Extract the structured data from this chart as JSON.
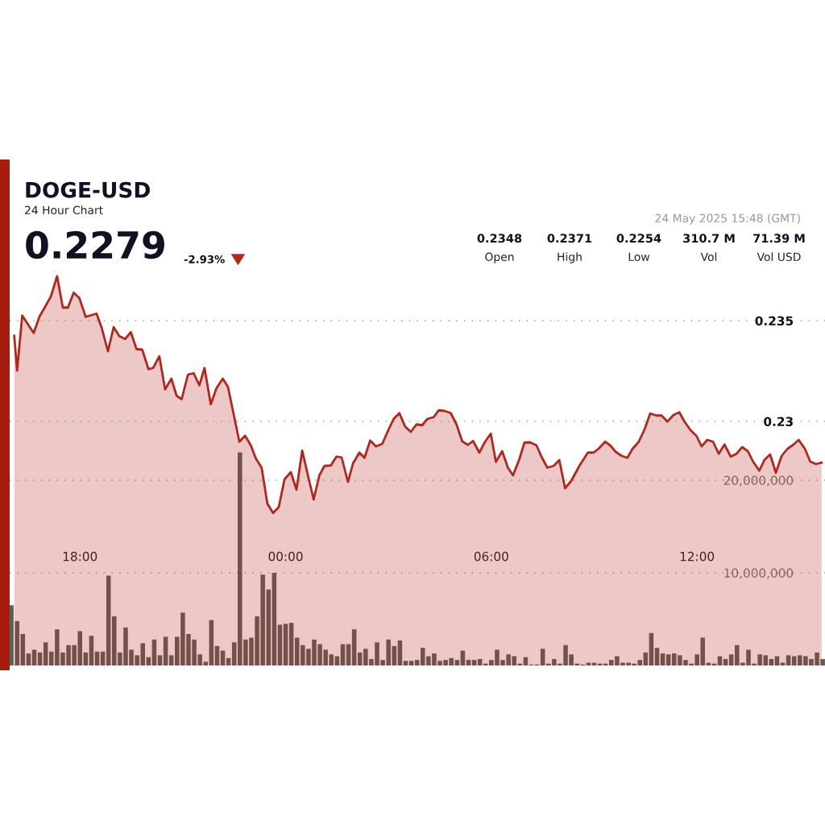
{
  "chart_data": {
    "type": "area",
    "title": "DOGE-USD",
    "subtitle": "24 Hour Chart",
    "annotations": [
      "0.2279",
      "-2.93%",
      "0.2348",
      "Open",
      "0.2371",
      "High",
      "0.2254",
      "Low",
      "310.7 M",
      "Vol",
      "71.39 M",
      "Vol USD",
      "24 May 2025 15:48 (GMT)"
    ],
    "series": [
      {
        "color": "#b3261e",
        "x": [
          "2025-05-23T16:05",
          "2025-05-23T16:10",
          "2025-05-23T16:19",
          "2025-05-23T16:39",
          "2025-05-23T16:49",
          "2025-05-23T17:09",
          "2025-05-23T17:20",
          "2025-05-23T17:30",
          "2025-05-23T17:39",
          "2025-05-23T17:49",
          "2025-05-23T17:59",
          "2025-05-23T18:10",
          "2025-05-23T18:29",
          "2025-05-23T18:38",
          "2025-05-23T18:49",
          "2025-05-23T18:59",
          "2025-05-23T19:09",
          "2025-05-23T19:19",
          "2025-05-23T19:29",
          "2025-05-23T19:39",
          "2025-05-23T19:49",
          "2025-05-23T20:00",
          "2025-05-23T20:08",
          "2025-05-23T20:19",
          "2025-05-23T20:29",
          "2025-05-23T20:40",
          "2025-05-23T20:49",
          "2025-05-23T20:58",
          "2025-05-23T21:09",
          "2025-05-23T21:19",
          "2025-05-23T21:29",
          "2025-05-23T21:38",
          "2025-05-23T21:49",
          "2025-05-23T21:59",
          "2025-05-23T22:10",
          "2025-05-23T22:19",
          "2025-05-23T22:39",
          "2025-05-23T22:49",
          "2025-05-23T22:59",
          "2025-05-23T23:08",
          "2025-05-23T23:18",
          "2025-05-23T23:28",
          "2025-05-23T23:38",
          "2025-05-23T23:48",
          "2025-05-23T23:58",
          "2025-05-24T00:09",
          "2025-05-24T00:19",
          "2025-05-24T00:29",
          "2025-05-24T00:39",
          "2025-05-24T00:49",
          "2025-05-24T00:59",
          "2025-05-24T01:08",
          "2025-05-24T01:19",
          "2025-05-24T01:29",
          "2025-05-24T01:38",
          "2025-05-24T01:49",
          "2025-05-24T01:58",
          "2025-05-24T02:09",
          "2025-05-24T02:18",
          "2025-05-24T02:28",
          "2025-05-24T02:38",
          "2025-05-24T02:49",
          "2025-05-24T02:59",
          "2025-05-24T03:09",
          "2025-05-24T03:19",
          "2025-05-24T03:29",
          "2025-05-24T03:39",
          "2025-05-24T03:49",
          "2025-05-24T03:59",
          "2025-05-24T04:08",
          "2025-05-24T04:19",
          "2025-05-24T04:28",
          "2025-05-24T04:38",
          "2025-05-24T04:49",
          "2025-05-24T04:59",
          "2025-05-24T05:09",
          "2025-05-24T05:19",
          "2025-05-24T05:28",
          "2025-05-24T05:39",
          "2025-05-24T05:49",
          "2025-05-24T05:59",
          "2025-05-24T06:08",
          "2025-05-24T06:19",
          "2025-05-24T06:29",
          "2025-05-24T06:38",
          "2025-05-24T06:49",
          "2025-05-24T06:58",
          "2025-05-24T07:08",
          "2025-05-24T07:19",
          "2025-05-24T07:28",
          "2025-05-24T07:38",
          "2025-05-24T07:49",
          "2025-05-24T07:59",
          "2025-05-24T08:09",
          "2025-05-24T08:20",
          "2025-05-24T08:34",
          "2025-05-24T08:49",
          "2025-05-24T08:59",
          "2025-05-24T09:08",
          "2025-05-24T09:19",
          "2025-05-24T09:28",
          "2025-05-24T09:38",
          "2025-05-24T09:48",
          "2025-05-24T09:58",
          "2025-05-24T10:07",
          "2025-05-24T10:18",
          "2025-05-24T10:28",
          "2025-05-24T10:38",
          "2025-05-24T10:49",
          "2025-05-24T10:58",
          "2025-05-24T11:08",
          "2025-05-24T11:19",
          "2025-05-24T11:29",
          "2025-05-24T11:38",
          "2025-05-24T11:49",
          "2025-05-24T11:59",
          "2025-05-24T12:08",
          "2025-05-24T12:18",
          "2025-05-24T12:28",
          "2025-05-24T12:38",
          "2025-05-24T12:48",
          "2025-05-24T12:59",
          "2025-05-24T13:09",
          "2025-05-24T13:19",
          "2025-05-24T13:29",
          "2025-05-24T13:38",
          "2025-05-24T13:49",
          "2025-05-24T13:58",
          "2025-05-24T14:08",
          "2025-05-24T14:18",
          "2025-05-24T14:28",
          "2025-05-24T14:38",
          "2025-05-24T14:48",
          "2025-05-24T14:58",
          "2025-05-24T15:09",
          "2025-05-24T15:18",
          "2025-05-24T15:28",
          "2025-05-24T15:38"
        ],
        "values": [
          0.23425,
          0.23252,
          0.23525,
          0.23439,
          0.23519,
          0.23619,
          0.23721,
          0.23565,
          0.23565,
          0.23639,
          0.23612,
          0.23519,
          0.23535,
          0.23465,
          0.23348,
          0.23468,
          0.23423,
          0.23409,
          0.23443,
          0.23359,
          0.23356,
          0.23259,
          0.23265,
          0.23323,
          0.23159,
          0.23212,
          0.23128,
          0.2311,
          0.23232,
          0.23239,
          0.23179,
          0.23265,
          0.23085,
          0.23165,
          0.23212,
          0.23172,
          0.22899,
          0.22929,
          0.22881,
          0.22815,
          0.2277,
          0.22592,
          0.22545,
          0.22575,
          0.22712,
          0.22748,
          0.22661,
          0.22855,
          0.22732,
          0.22612,
          0.22732,
          0.22779,
          0.22781,
          0.22825,
          0.22821,
          0.22699,
          0.22792,
          0.22845,
          0.22819,
          0.22905,
          0.22876,
          0.22888,
          0.22952,
          0.23012,
          0.23041,
          0.22975,
          0.22948,
          0.22985,
          0.22981,
          0.23012,
          0.23021,
          0.23055,
          0.23052,
          0.23041,
          0.22985,
          0.22901,
          0.22883,
          0.22903,
          0.22845,
          0.22899,
          0.22939,
          0.22799,
          0.22852,
          0.2277,
          0.22732,
          0.22812,
          0.22895,
          0.22896,
          0.22881,
          0.22823,
          0.2277,
          0.22779,
          0.22808,
          0.22668,
          0.22705,
          0.22779,
          0.22845,
          0.22845,
          0.22865,
          0.22899,
          0.22881,
          0.22848,
          0.22829,
          0.22819,
          0.22863,
          0.22899,
          0.22959,
          0.23039,
          0.23029,
          0.23029,
          0.22999,
          0.23032,
          0.23045,
          0.22999,
          0.22955,
          0.22928,
          0.22876,
          0.22908,
          0.22899,
          0.22839,
          0.22885,
          0.22825,
          0.22839,
          0.22872,
          0.22852,
          0.22801,
          0.22755,
          0.22809,
          0.22836,
          0.22745,
          0.22828,
          0.22863,
          0.22883,
          0.22908,
          0.22863,
          0.22801,
          0.22788,
          0.22795
        ]
      },
      {
        "type": "bar",
        "axis": "y2",
        "color": "#5e5e58",
        "x": [
          "2025-05-23T16:00",
          "2025-05-23T16:10",
          "2025-05-23T16:20",
          "2025-05-23T16:30",
          "2025-05-23T16:40",
          "2025-05-23T16:50",
          "2025-05-23T17:00",
          "2025-05-23T17:10",
          "2025-05-23T17:20",
          "2025-05-23T17:30",
          "2025-05-23T17:40",
          "2025-05-23T17:50",
          "2025-05-23T18:00",
          "2025-05-23T18:10",
          "2025-05-23T18:20",
          "2025-05-23T18:30",
          "2025-05-23T18:40",
          "2025-05-23T18:50",
          "2025-05-23T19:00",
          "2025-05-23T19:10",
          "2025-05-23T19:20",
          "2025-05-23T19:30",
          "2025-05-23T19:40",
          "2025-05-23T19:50",
          "2025-05-23T20:00",
          "2025-05-23T20:10",
          "2025-05-23T20:20",
          "2025-05-23T20:30",
          "2025-05-23T20:40",
          "2025-05-23T20:50",
          "2025-05-23T21:00",
          "2025-05-23T21:10",
          "2025-05-23T21:20",
          "2025-05-23T21:30",
          "2025-05-23T21:40",
          "2025-05-23T21:50",
          "2025-05-23T22:00",
          "2025-05-23T22:10",
          "2025-05-23T22:20",
          "2025-05-23T22:30",
          "2025-05-23T22:40",
          "2025-05-23T22:50",
          "2025-05-23T23:00",
          "2025-05-23T23:10",
          "2025-05-23T23:20",
          "2025-05-23T23:30",
          "2025-05-23T23:40",
          "2025-05-23T23:50",
          "2025-05-24T00:00",
          "2025-05-24T00:10",
          "2025-05-24T00:20",
          "2025-05-24T00:30",
          "2025-05-24T00:40",
          "2025-05-24T00:50",
          "2025-05-24T01:00",
          "2025-05-24T01:10",
          "2025-05-24T01:20",
          "2025-05-24T01:30",
          "2025-05-24T01:40",
          "2025-05-24T01:50",
          "2025-05-24T02:00",
          "2025-05-24T02:10",
          "2025-05-24T02:20",
          "2025-05-24T02:30",
          "2025-05-24T02:40",
          "2025-05-24T02:50",
          "2025-05-24T03:00",
          "2025-05-24T03:10",
          "2025-05-24T03:20",
          "2025-05-24T03:30",
          "2025-05-24T03:40",
          "2025-05-24T03:50",
          "2025-05-24T04:00",
          "2025-05-24T04:10",
          "2025-05-24T04:20",
          "2025-05-24T04:30",
          "2025-05-24T04:40",
          "2025-05-24T04:50",
          "2025-05-24T05:00",
          "2025-05-24T05:10",
          "2025-05-24T05:20",
          "2025-05-24T05:30",
          "2025-05-24T05:40",
          "2025-05-24T05:50",
          "2025-05-24T06:00",
          "2025-05-24T06:10",
          "2025-05-24T06:20",
          "2025-05-24T06:30",
          "2025-05-24T06:40",
          "2025-05-24T06:50",
          "2025-05-24T07:00",
          "2025-05-24T07:10",
          "2025-05-24T07:20",
          "2025-05-24T07:30",
          "2025-05-24T07:40",
          "2025-05-24T07:50",
          "2025-05-24T08:00",
          "2025-05-24T08:10",
          "2025-05-24T08:20",
          "2025-05-24T08:30",
          "2025-05-24T08:40",
          "2025-05-24T08:50",
          "2025-05-24T09:00",
          "2025-05-24T09:10",
          "2025-05-24T09:20",
          "2025-05-24T09:30",
          "2025-05-24T09:40",
          "2025-05-24T09:50",
          "2025-05-24T10:00",
          "2025-05-24T10:10",
          "2025-05-24T10:20",
          "2025-05-24T10:30",
          "2025-05-24T10:40",
          "2025-05-24T10:50",
          "2025-05-24T11:00",
          "2025-05-24T11:10",
          "2025-05-24T11:20",
          "2025-05-24T11:30",
          "2025-05-24T11:40",
          "2025-05-24T11:50",
          "2025-05-24T12:00",
          "2025-05-24T12:10",
          "2025-05-24T12:20",
          "2025-05-24T12:30",
          "2025-05-24T12:40",
          "2025-05-24T12:50",
          "2025-05-24T13:00",
          "2025-05-24T13:10",
          "2025-05-24T13:20",
          "2025-05-24T13:30",
          "2025-05-24T13:40",
          "2025-05-24T13:50",
          "2025-05-24T14:00",
          "2025-05-24T14:10",
          "2025-05-24T14:20",
          "2025-05-24T14:30",
          "2025-05-24T14:40",
          "2025-05-24T14:50",
          "2025-05-24T15:00",
          "2025-05-24T15:10",
          "2025-05-24T15:20",
          "2025-05-24T15:30",
          "2025-05-24T15:40"
        ],
        "values": [
          6500000,
          4800000,
          3400000,
          1300000,
          1700000,
          1400000,
          2500000,
          1500000,
          3900000,
          1400000,
          2200000,
          2200000,
          3700000,
          1400000,
          3200000,
          1500000,
          1500000,
          9700000,
          5300000,
          1400000,
          4100000,
          1700000,
          1100000,
          2400000,
          900000,
          2800000,
          1100000,
          3100000,
          1100000,
          3100000,
          5700000,
          3400000,
          2800000,
          1200000,
          400000,
          4900000,
          2100000,
          1600000,
          800000,
          2500000,
          23000000,
          2800000,
          3000000,
          5300000,
          9800000,
          8200000,
          10000000,
          4400000,
          4500000,
          4600000,
          3000000,
          2200000,
          1800000,
          2800000,
          2300000,
          1700000,
          1200000,
          1000000,
          2300000,
          2300000,
          3900000,
          1400000,
          1800000,
          700000,
          2500000,
          600000,
          2800000,
          2100000,
          2700000,
          500000,
          500000,
          600000,
          1900000,
          1000000,
          1300000,
          500000,
          600000,
          800000,
          600000,
          1600000,
          600000,
          600000,
          700000,
          200000,
          600000,
          1700000,
          600000,
          1200000,
          1000000,
          200000,
          900000,
          100000,
          100000,
          1800000,
          200000,
          700000,
          200000,
          2200000,
          1200000,
          200000,
          100000,
          300000,
          300000,
          200000,
          200000,
          600000,
          1000000,
          300000,
          300000,
          200000,
          600000,
          1400000,
          3500000,
          1900000,
          1300000,
          1200000,
          1300000,
          1100000,
          600000,
          200000,
          1200000,
          3000000,
          300000,
          200000,
          1000000,
          700000,
          1200000,
          2200000,
          300000,
          1700000,
          200000,
          1200000,
          1100000,
          700000,
          1000000,
          300000,
          1100000,
          1000000,
          1100000,
          1000000,
          700000,
          1400000,
          700000
        ]
      }
    ],
    "xlim": [
      "2025-05-23T15:57",
      "2025-05-24T15:44"
    ],
    "xticks": [
      {
        "value": "2025-05-23T18:00",
        "label": "18:00"
      },
      {
        "value": "2025-05-24T00:00",
        "label": "00:00"
      },
      {
        "value": "2025-05-24T06:00",
        "label": "06:00"
      },
      {
        "value": "2025-05-24T12:00",
        "label": "12:00"
      }
    ],
    "ylim": [
      0.21788,
      0.23732
    ],
    "yticks": [
      0.23,
      0.235
    ],
    "y2lim": [
      0,
      42260000
    ],
    "y2ticks": [
      {
        "value": 10000000,
        "label": "10,000,000"
      },
      {
        "value": 20000000,
        "label": "20,000,000"
      }
    ],
    "grid": "y",
    "marker": "none",
    "line_style": "solid"
  }
}
